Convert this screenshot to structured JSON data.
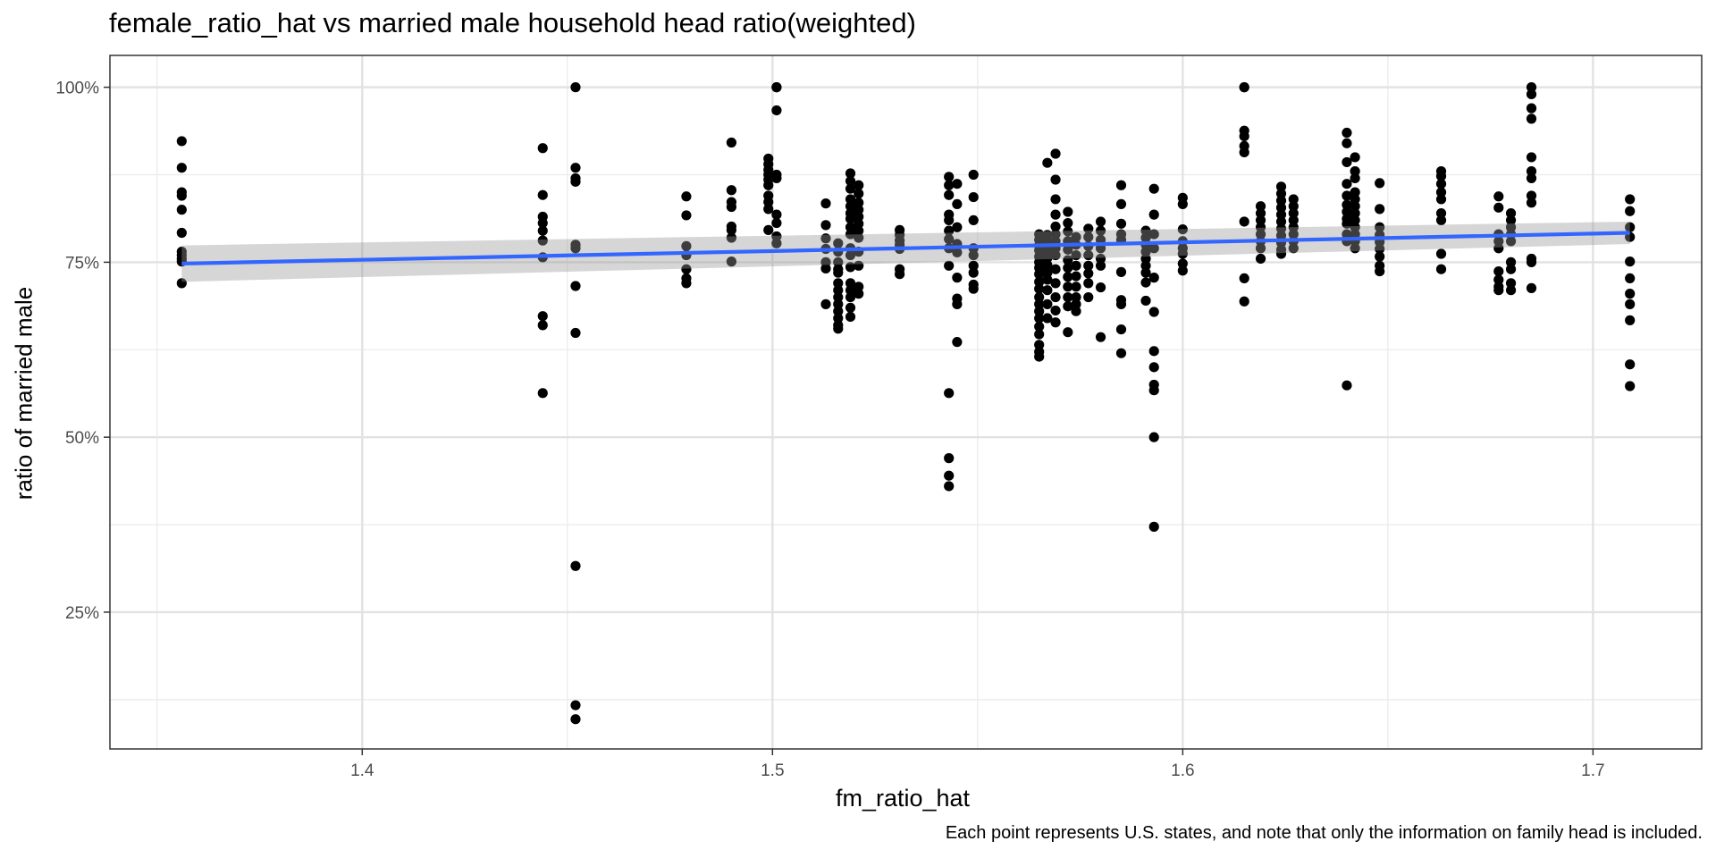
{
  "chart_data": {
    "type": "scatter",
    "title": "female_ratio_hat vs married male household head ratio(weighted)",
    "xlabel": "fm_ratio_hat",
    "ylabel": "ratio of married male",
    "caption": "Each point represents U.S. states, and note that only the information on family head is included.",
    "xlim": [
      1.3385,
      1.7265
    ],
    "ylim": [
      0.0545,
      1.0455
    ],
    "x_ticks": [
      1.4,
      1.5,
      1.6,
      1.7
    ],
    "x_tick_labels": [
      "1.4",
      "1.5",
      "1.6",
      "1.7"
    ],
    "y_ticks": [
      0.25,
      0.5,
      0.75,
      1.0
    ],
    "y_tick_labels": [
      "25%",
      "50%",
      "75%",
      "100%"
    ],
    "grid": true,
    "theme": "bw",
    "point_color": "#000000",
    "line_color": "#3366FF",
    "band_color": "#999999",
    "series": [
      {
        "x": 1.356,
        "values": [
          0.923,
          0.885,
          0.85,
          0.845,
          0.825,
          0.792,
          0.765,
          0.76,
          0.755,
          0.751,
          0.72
        ]
      },
      {
        "x": 1.444,
        "values": [
          0.913,
          0.846,
          0.815,
          0.806,
          0.795,
          0.781,
          0.757,
          0.673,
          0.66,
          0.563
        ]
      },
      {
        "x": 1.452,
        "values": [
          1.0,
          0.885,
          0.87,
          0.865,
          0.775,
          0.77,
          0.716,
          0.649,
          0.316,
          0.117,
          0.097
        ]
      },
      {
        "x": 1.479,
        "values": [
          0.844,
          0.817,
          0.773,
          0.76,
          0.74,
          0.727,
          0.72
        ]
      },
      {
        "x": 1.49,
        "values": [
          0.921,
          0.853,
          0.836,
          0.829,
          0.801,
          0.796,
          0.785,
          0.751
        ]
      },
      {
        "x": 1.499,
        "values": [
          0.898,
          0.89,
          0.882,
          0.875,
          0.868,
          0.86,
          0.845,
          0.836,
          0.826,
          0.796
        ]
      },
      {
        "x": 1.501,
        "values": [
          1.0,
          1.0,
          0.967,
          0.875,
          0.87,
          0.818,
          0.806,
          0.787,
          0.777
        ]
      },
      {
        "x": 1.513,
        "values": [
          0.834,
          0.803,
          0.784,
          0.769,
          0.75,
          0.741,
          0.69
        ]
      },
      {
        "x": 1.516,
        "values": [
          0.777,
          0.765,
          0.75,
          0.74,
          0.735,
          0.72,
          0.71,
          0.7,
          0.69,
          0.68,
          0.67,
          0.66,
          0.655
        ]
      },
      {
        "x": 1.519,
        "values": [
          0.877,
          0.866,
          0.855,
          0.84,
          0.83,
          0.82,
          0.812,
          0.8,
          0.79,
          0.77,
          0.76,
          0.743,
          0.72,
          0.71,
          0.7,
          0.685,
          0.672
        ]
      },
      {
        "x": 1.521,
        "values": [
          0.86,
          0.848,
          0.835,
          0.825,
          0.815,
          0.805,
          0.795,
          0.785,
          0.765,
          0.745,
          0.715,
          0.705
        ]
      },
      {
        "x": 1.531,
        "values": [
          0.796,
          0.789,
          0.781,
          0.775,
          0.769,
          0.74,
          0.733
        ]
      },
      {
        "x": 1.543,
        "values": [
          0.872,
          0.86,
          0.846,
          0.818,
          0.81,
          0.795,
          0.783,
          0.77,
          0.745,
          0.563,
          0.47,
          0.445,
          0.43
        ]
      },
      {
        "x": 1.545,
        "values": [
          0.862,
          0.833,
          0.8,
          0.776,
          0.764,
          0.728,
          0.698,
          0.69,
          0.636
        ]
      },
      {
        "x": 1.549,
        "values": [
          0.875,
          0.843,
          0.81,
          0.77,
          0.76,
          0.745,
          0.735,
          0.718,
          0.712
        ]
      },
      {
        "x": 1.565,
        "values": [
          0.79,
          0.782,
          0.774,
          0.767,
          0.758,
          0.75,
          0.742,
          0.733,
          0.722,
          0.712,
          0.7,
          0.69,
          0.68,
          0.67,
          0.658,
          0.647,
          0.632,
          0.622,
          0.615
        ]
      },
      {
        "x": 1.567,
        "values": [
          0.892,
          0.789,
          0.781,
          0.773,
          0.765,
          0.756,
          0.746,
          0.735,
          0.725,
          0.71,
          0.69,
          0.67
        ]
      },
      {
        "x": 1.569,
        "values": [
          0.905,
          0.868,
          0.84,
          0.818,
          0.801,
          0.79,
          0.78,
          0.77,
          0.76,
          0.74,
          0.72,
          0.7,
          0.681,
          0.664
        ]
      },
      {
        "x": 1.572,
        "values": [
          0.822,
          0.806,
          0.794,
          0.78,
          0.768,
          0.753,
          0.742,
          0.729,
          0.715,
          0.7,
          0.687,
          0.65
        ]
      },
      {
        "x": 1.574,
        "values": [
          0.786,
          0.775,
          0.76,
          0.745,
          0.73,
          0.715,
          0.7,
          0.69,
          0.68
        ]
      },
      {
        "x": 1.577,
        "values": [
          0.798,
          0.786,
          0.773,
          0.76,
          0.745,
          0.734,
          0.72,
          0.7
        ]
      },
      {
        "x": 1.58,
        "values": [
          0.808,
          0.795,
          0.782,
          0.77,
          0.755,
          0.745,
          0.714,
          0.643
        ]
      },
      {
        "x": 1.585,
        "values": [
          0.86,
          0.833,
          0.805,
          0.79,
          0.782,
          0.736,
          0.696,
          0.69,
          0.654,
          0.62
        ]
      },
      {
        "x": 1.591,
        "values": [
          0.795,
          0.785,
          0.775,
          0.765,
          0.755,
          0.745,
          0.735,
          0.721,
          0.695
        ]
      },
      {
        "x": 1.593,
        "values": [
          0.855,
          0.818,
          0.79,
          0.77,
          0.728,
          0.679,
          0.623,
          0.6,
          0.575,
          0.567,
          0.5,
          0.372
        ]
      },
      {
        "x": 1.6,
        "values": [
          0.842,
          0.833,
          0.797,
          0.78,
          0.77,
          0.762,
          0.748,
          0.738
        ]
      },
      {
        "x": 1.615,
        "values": [
          1.0,
          1.0,
          0.938,
          0.93,
          0.916,
          0.907,
          0.808,
          0.727,
          0.694
        ]
      },
      {
        "x": 1.619,
        "values": [
          0.83,
          0.82,
          0.81,
          0.8,
          0.79,
          0.78,
          0.77,
          0.755
        ]
      },
      {
        "x": 1.624,
        "values": [
          0.858,
          0.848,
          0.838,
          0.828,
          0.818,
          0.808,
          0.798,
          0.788,
          0.778,
          0.768,
          0.762
        ]
      },
      {
        "x": 1.627,
        "values": [
          0.84,
          0.83,
          0.82,
          0.81,
          0.8,
          0.79,
          0.78,
          0.77
        ]
      },
      {
        "x": 1.64,
        "values": [
          0.935,
          0.92,
          0.893,
          0.862,
          0.845,
          0.832,
          0.822,
          0.812,
          0.805,
          0.79,
          0.78,
          0.574
        ]
      },
      {
        "x": 1.642,
        "values": [
          0.9,
          0.88,
          0.87,
          0.85,
          0.84,
          0.83,
          0.82,
          0.81,
          0.8,
          0.79,
          0.78,
          0.77
        ]
      },
      {
        "x": 1.648,
        "values": [
          0.863,
          0.826,
          0.8,
          0.789,
          0.779,
          0.769,
          0.758,
          0.745,
          0.737
        ]
      },
      {
        "x": 1.663,
        "values": [
          0.88,
          0.873,
          0.862,
          0.85,
          0.84,
          0.82,
          0.81,
          0.762,
          0.74
        ]
      },
      {
        "x": 1.677,
        "values": [
          0.844,
          0.828,
          0.79,
          0.78,
          0.77,
          0.737,
          0.725,
          0.715,
          0.71
        ]
      },
      {
        "x": 1.68,
        "values": [
          0.82,
          0.81,
          0.8,
          0.79,
          0.78,
          0.75,
          0.74,
          0.72,
          0.71
        ]
      },
      {
        "x": 1.685,
        "values": [
          1.0,
          0.99,
          0.97,
          0.955,
          0.9,
          0.88,
          0.87,
          0.845,
          0.835,
          0.755,
          0.75,
          0.713
        ]
      },
      {
        "x": 1.709,
        "values": [
          0.84,
          0.823,
          0.8,
          0.786,
          0.751,
          0.727,
          0.705,
          0.69,
          0.667,
          0.604,
          0.573
        ]
      }
    ],
    "fit_line": {
      "method": "lm",
      "x": [
        1.356,
        1.709
      ],
      "y": [
        0.748,
        0.792
      ]
    },
    "confidence_band": {
      "x": [
        1.356,
        1.709
      ],
      "lower": [
        0.722,
        0.776
      ],
      "upper": [
        0.774,
        0.808
      ]
    }
  }
}
